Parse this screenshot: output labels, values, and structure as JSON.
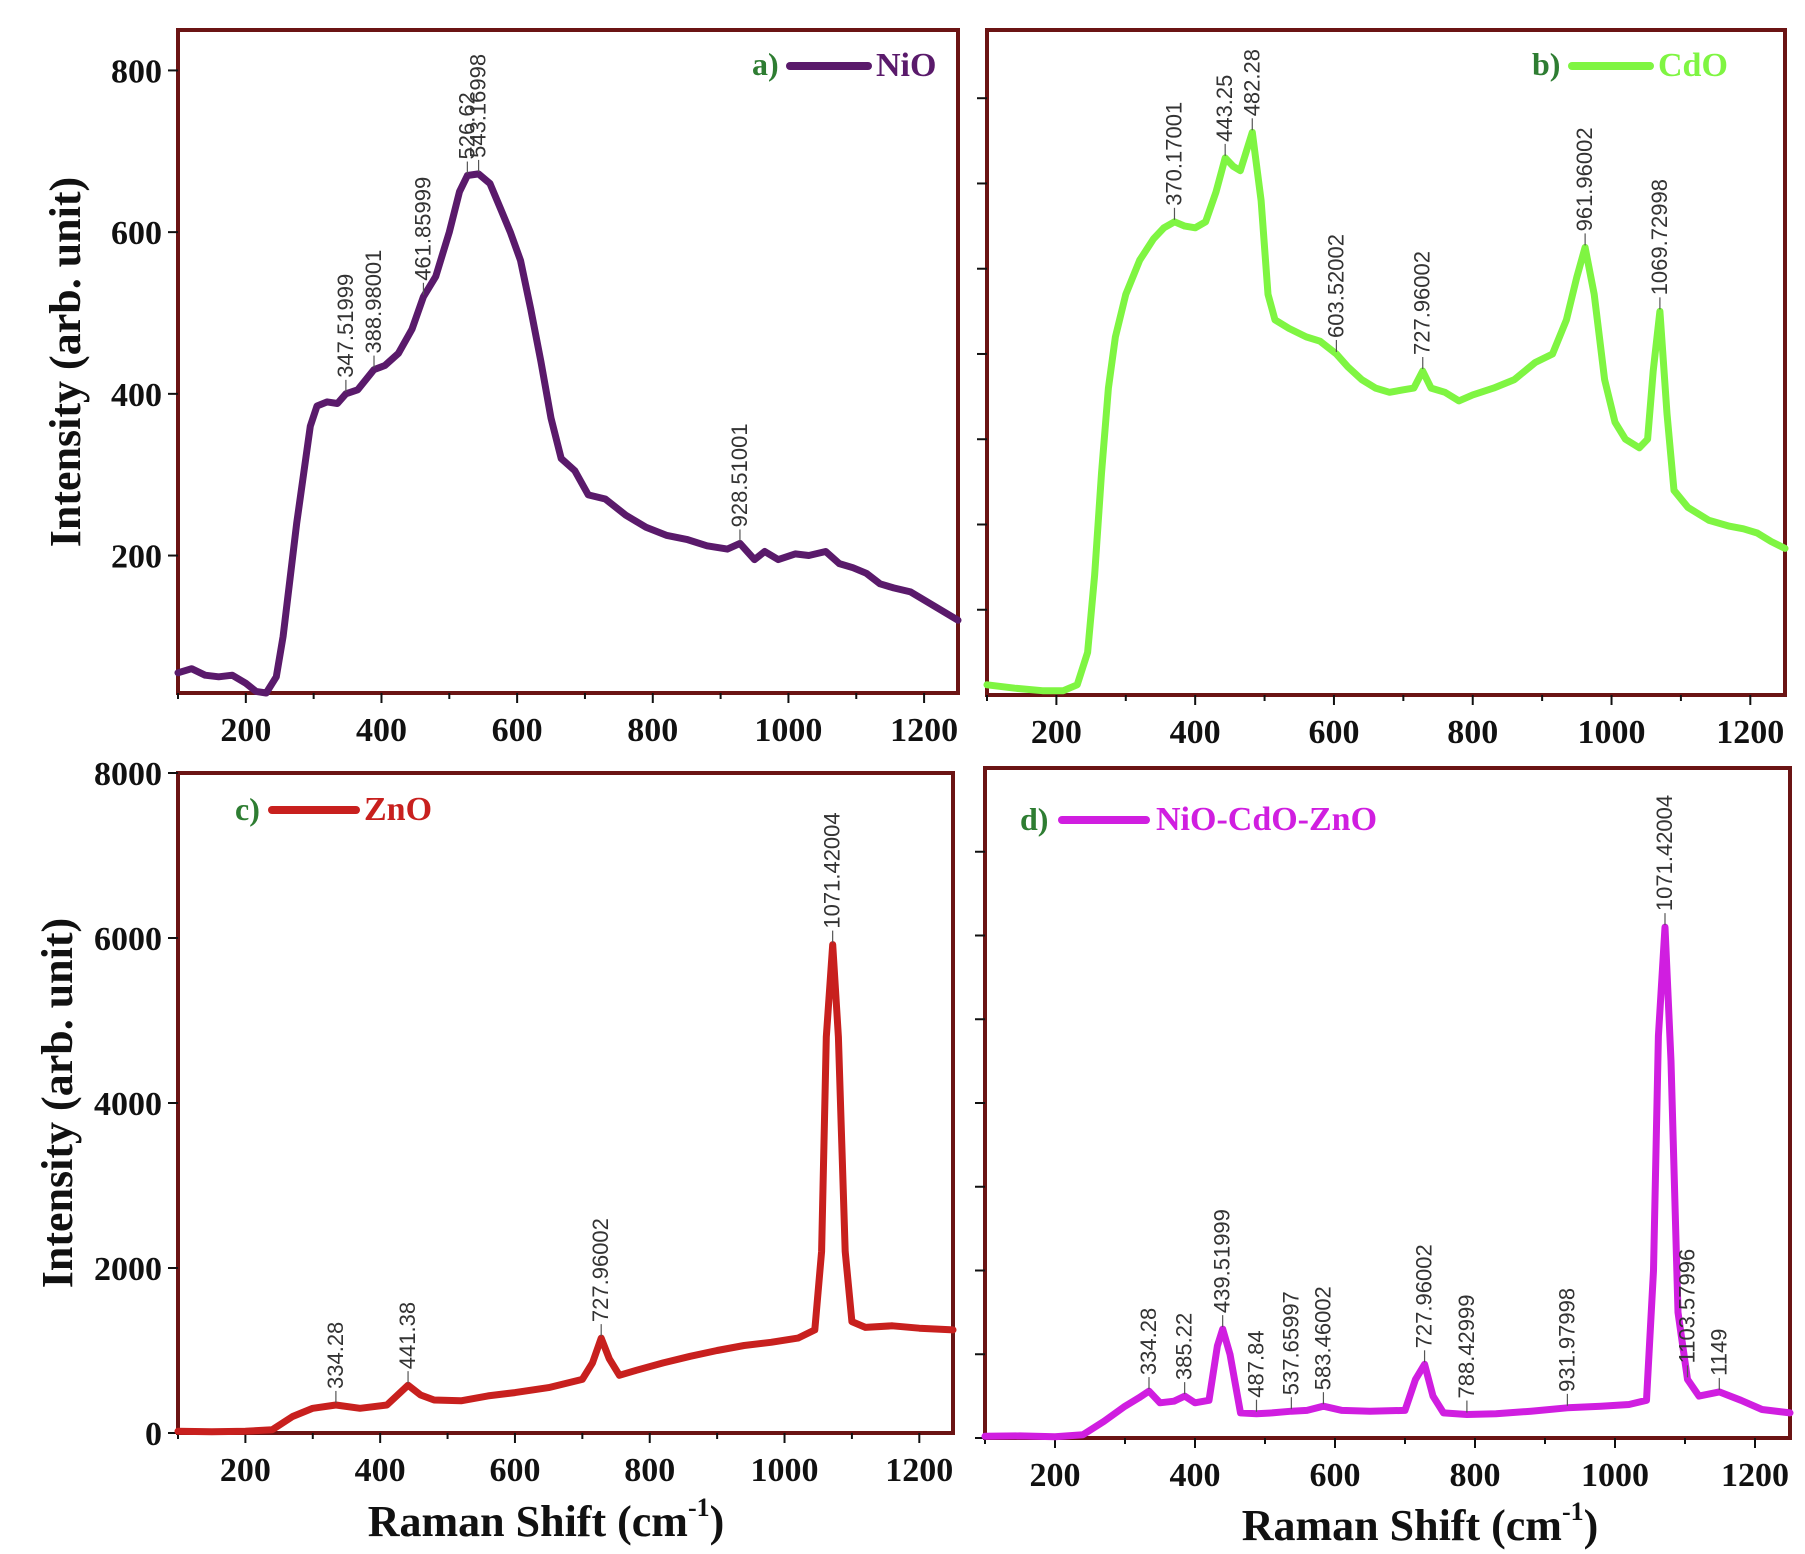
{
  "figure": {
    "x_axis_title": "Raman Shift (cm",
    "x_axis_sup": "-1",
    "x_axis_close": ")",
    "y_axis_title": "Intensity (arb. unit)"
  },
  "chart_data": [
    {
      "type": "line",
      "panel_tag": "a)",
      "series_name": "NiO",
      "color": "#5a1a6b",
      "xlim": [
        100,
        1250
      ],
      "ylim": [
        30,
        850
      ],
      "x_ticks": [
        200,
        400,
        600,
        800,
        1000,
        1200
      ],
      "y_ticks": [
        200,
        400,
        600,
        800
      ],
      "show_y_tick_labels": true,
      "points": [
        [
          100,
          55
        ],
        [
          120,
          60
        ],
        [
          140,
          52
        ],
        [
          160,
          50
        ],
        [
          180,
          52
        ],
        [
          200,
          42
        ],
        [
          215,
          32
        ],
        [
          230,
          30
        ],
        [
          245,
          50
        ],
        [
          255,
          100
        ],
        [
          265,
          170
        ],
        [
          275,
          240
        ],
        [
          285,
          300
        ],
        [
          295,
          360
        ],
        [
          305,
          385
        ],
        [
          320,
          390
        ],
        [
          335,
          388
        ],
        [
          347.52,
          400
        ],
        [
          365,
          405
        ],
        [
          388.98,
          430
        ],
        [
          405,
          435
        ],
        [
          425,
          450
        ],
        [
          445,
          480
        ],
        [
          461.86,
          520
        ],
        [
          480,
          545
        ],
        [
          500,
          600
        ],
        [
          515,
          650
        ],
        [
          526.62,
          670
        ],
        [
          543.17,
          672
        ],
        [
          560,
          660
        ],
        [
          575,
          630
        ],
        [
          590,
          600
        ],
        [
          605,
          565
        ],
        [
          620,
          505
        ],
        [
          635,
          440
        ],
        [
          650,
          370
        ],
        [
          665,
          320
        ],
        [
          685,
          305
        ],
        [
          705,
          275
        ],
        [
          730,
          270
        ],
        [
          760,
          250
        ],
        [
          790,
          235
        ],
        [
          820,
          225
        ],
        [
          850,
          220
        ],
        [
          880,
          212
        ],
        [
          910,
          208
        ],
        [
          928.51,
          215
        ],
        [
          950,
          195
        ],
        [
          965,
          205
        ],
        [
          985,
          195
        ],
        [
          1010,
          202
        ],
        [
          1030,
          200
        ],
        [
          1055,
          205
        ],
        [
          1075,
          190
        ],
        [
          1095,
          185
        ],
        [
          1115,
          178
        ],
        [
          1135,
          165
        ],
        [
          1155,
          160
        ],
        [
          1180,
          155
        ],
        [
          1200,
          145
        ],
        [
          1220,
          135
        ],
        [
          1250,
          120
        ]
      ],
      "peaks": [
        347.51999,
        388.98001,
        461.85999,
        526.62,
        543.16998,
        928.51001
      ],
      "peak_labels": [
        "347.51999",
        "388.98001",
        "461.85999",
        "526.62",
        "543.16998",
        "928.51001"
      ]
    },
    {
      "type": "line",
      "panel_tag": "b)",
      "series_name": "CdO",
      "color": "#7ff542",
      "xlim": [
        100,
        1250
      ],
      "ylim": [
        0,
        780
      ],
      "x_ticks": [
        200,
        400,
        600,
        800,
        1000,
        1200
      ],
      "y_ticks": [
        100,
        200,
        300,
        400,
        500,
        600,
        700
      ],
      "show_y_tick_labels": false,
      "points": [
        [
          100,
          12
        ],
        [
          140,
          8
        ],
        [
          180,
          5
        ],
        [
          210,
          5
        ],
        [
          230,
          12
        ],
        [
          245,
          50
        ],
        [
          255,
          140
        ],
        [
          265,
          260
        ],
        [
          275,
          360
        ],
        [
          285,
          420
        ],
        [
          300,
          470
        ],
        [
          320,
          510
        ],
        [
          340,
          535
        ],
        [
          355,
          548
        ],
        [
          370.17,
          555
        ],
        [
          385,
          550
        ],
        [
          400,
          548
        ],
        [
          415,
          555
        ],
        [
          430,
          590
        ],
        [
          443.25,
          630
        ],
        [
          455,
          620
        ],
        [
          465,
          615
        ],
        [
          482.28,
          660
        ],
        [
          495,
          580
        ],
        [
          505,
          470
        ],
        [
          515,
          440
        ],
        [
          535,
          430
        ],
        [
          560,
          420
        ],
        [
          580,
          415
        ],
        [
          603.52,
          400
        ],
        [
          620,
          385
        ],
        [
          640,
          370
        ],
        [
          660,
          360
        ],
        [
          680,
          355
        ],
        [
          700,
          358
        ],
        [
          715,
          360
        ],
        [
          727.96,
          380
        ],
        [
          740,
          360
        ],
        [
          760,
          355
        ],
        [
          780,
          345
        ],
        [
          800,
          352
        ],
        [
          830,
          360
        ],
        [
          860,
          370
        ],
        [
          890,
          390
        ],
        [
          915,
          400
        ],
        [
          935,
          440
        ],
        [
          950,
          490
        ],
        [
          961.96,
          525
        ],
        [
          975,
          470
        ],
        [
          990,
          370
        ],
        [
          1005,
          320
        ],
        [
          1020,
          300
        ],
        [
          1040,
          290
        ],
        [
          1052,
          300
        ],
        [
          1060,
          380
        ],
        [
          1069.73,
          450
        ],
        [
          1080,
          330
        ],
        [
          1090,
          240
        ],
        [
          1110,
          220
        ],
        [
          1140,
          205
        ],
        [
          1170,
          198
        ],
        [
          1190,
          195
        ],
        [
          1210,
          190
        ],
        [
          1230,
          180
        ],
        [
          1250,
          172
        ]
      ],
      "peaks": [
        370.17001,
        443.25,
        482.28,
        603.52002,
        727.96002,
        961.96002,
        1069.72998
      ],
      "peak_labels": [
        "370.17001",
        "443.25",
        "482.28",
        "603.52002",
        "727.96002",
        "961.96002",
        "1069.72998"
      ]
    },
    {
      "type": "line",
      "panel_tag": "c)",
      "series_name": "ZnO",
      "color": "#c8201e",
      "xlim": [
        100,
        1250
      ],
      "ylim": [
        0,
        8000
      ],
      "x_ticks": [
        200,
        400,
        600,
        800,
        1000,
        1200
      ],
      "y_ticks": [
        0,
        2000,
        4000,
        6000,
        8000
      ],
      "show_y_tick_labels": true,
      "points": [
        [
          100,
          20
        ],
        [
          150,
          15
        ],
        [
          200,
          20
        ],
        [
          240,
          40
        ],
        [
          270,
          200
        ],
        [
          300,
          300
        ],
        [
          334.28,
          340
        ],
        [
          370,
          300
        ],
        [
          410,
          340
        ],
        [
          441.38,
          580
        ],
        [
          460,
          460
        ],
        [
          480,
          400
        ],
        [
          520,
          390
        ],
        [
          560,
          450
        ],
        [
          600,
          490
        ],
        [
          650,
          550
        ],
        [
          700,
          650
        ],
        [
          715,
          850
        ],
        [
          727.96,
          1150
        ],
        [
          740,
          900
        ],
        [
          755,
          700
        ],
        [
          780,
          760
        ],
        [
          820,
          850
        ],
        [
          860,
          930
        ],
        [
          900,
          1000
        ],
        [
          940,
          1060
        ],
        [
          980,
          1100
        ],
        [
          1020,
          1150
        ],
        [
          1045,
          1250
        ],
        [
          1055,
          2200
        ],
        [
          1062,
          4800
        ],
        [
          1071.42,
          5920
        ],
        [
          1080,
          4800
        ],
        [
          1090,
          2200
        ],
        [
          1100,
          1350
        ],
        [
          1120,
          1280
        ],
        [
          1160,
          1300
        ],
        [
          1200,
          1270
        ],
        [
          1250,
          1250
        ]
      ],
      "peaks": [
        334.28,
        441.38,
        727.96002,
        1071.42004
      ],
      "peak_labels": [
        "334.28",
        "441.38",
        "727.96002",
        "1071.42004"
      ]
    },
    {
      "type": "line",
      "panel_tag": "d)",
      "series_name": "NiO-CdO-ZnO",
      "color": "#d01ee0",
      "xlim": [
        100,
        1250
      ],
      "ylim": [
        0,
        8000
      ],
      "x_ticks": [
        200,
        400,
        600,
        800,
        1000,
        1200
      ],
      "y_ticks": [
        0,
        1000,
        2000,
        3000,
        4000,
        5000,
        6000,
        7000
      ],
      "show_y_tick_labels": false,
      "points": [
        [
          100,
          20
        ],
        [
          150,
          25
        ],
        [
          200,
          15
        ],
        [
          240,
          40
        ],
        [
          270,
          200
        ],
        [
          300,
          380
        ],
        [
          320,
          480
        ],
        [
          334.28,
          560
        ],
        [
          350,
          420
        ],
        [
          370,
          440
        ],
        [
          385.22,
          500
        ],
        [
          400,
          420
        ],
        [
          420,
          450
        ],
        [
          432,
          1100
        ],
        [
          439.52,
          1300
        ],
        [
          450,
          1000
        ],
        [
          465,
          300
        ],
        [
          487.84,
          290
        ],
        [
          510,
          300
        ],
        [
          537.66,
          320
        ],
        [
          560,
          330
        ],
        [
          583.46,
          380
        ],
        [
          610,
          330
        ],
        [
          650,
          320
        ],
        [
          700,
          330
        ],
        [
          715,
          700
        ],
        [
          727.96,
          880
        ],
        [
          740,
          500
        ],
        [
          755,
          300
        ],
        [
          788.43,
          280
        ],
        [
          830,
          290
        ],
        [
          880,
          320
        ],
        [
          931.98,
          360
        ],
        [
          980,
          380
        ],
        [
          1020,
          400
        ],
        [
          1045,
          450
        ],
        [
          1055,
          2000
        ],
        [
          1062,
          4800
        ],
        [
          1071.42,
          6100
        ],
        [
          1080,
          4500
        ],
        [
          1090,
          1500
        ],
        [
          1103.58,
          700
        ],
        [
          1120,
          500
        ],
        [
          1149,
          550
        ],
        [
          1180,
          450
        ],
        [
          1210,
          340
        ],
        [
          1250,
          300
        ]
      ],
      "peaks": [
        334.28,
        385.22,
        439.51999,
        487.84,
        537.65997,
        583.46002,
        727.96002,
        788.42999,
        931.97998,
        1071.42004,
        1103.57996,
        1149
      ],
      "peak_labels": [
        "334.28",
        "385.22",
        "439.51999",
        "487.84",
        "537.65997",
        "583.46002",
        "727.96002",
        "788.42999",
        "931.97998",
        "1071.42004",
        "1103.57996",
        "1149"
      ]
    }
  ]
}
